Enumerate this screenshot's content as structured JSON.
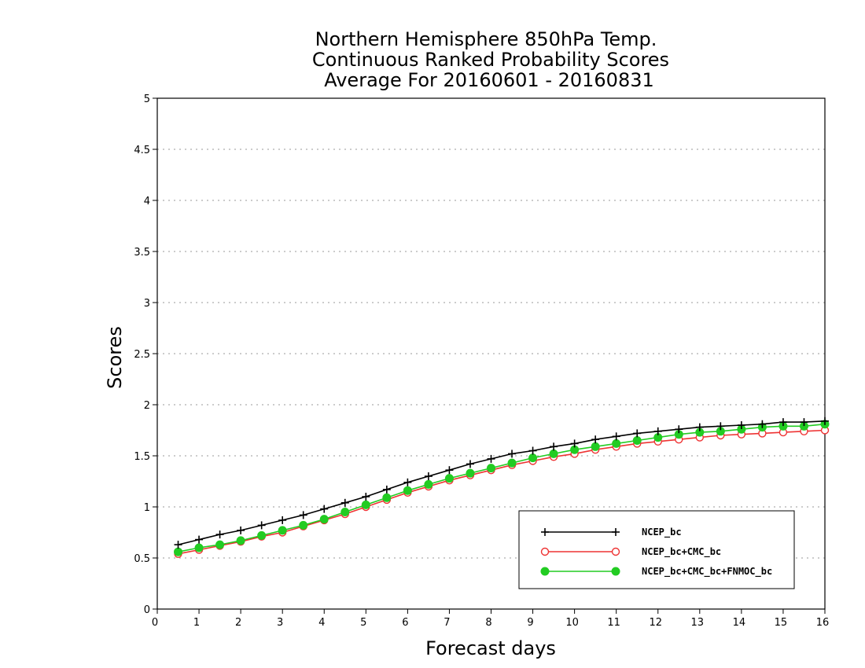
{
  "chart_data": {
    "type": "line",
    "title_lines": [
      "Northern Hemisphere 850hPa Temp.",
      "Continuous Ranked Probability Scores",
      "Average For 20160601 - 20160831"
    ],
    "xlabel": "Forecast days",
    "ylabel": "Scores",
    "xlim": [
      0,
      16
    ],
    "ylim": [
      0,
      5
    ],
    "x_ticks": [
      "0",
      "1",
      "2",
      "3",
      "4",
      "5",
      "6",
      "7",
      "8",
      "9",
      "10",
      "11",
      "12",
      "13",
      "14",
      "15",
      "16"
    ],
    "y_ticks": [
      "0",
      "0.5",
      "1",
      "1.5",
      "2",
      "2.5",
      "3",
      "3.5",
      "4",
      "4.5",
      "5"
    ],
    "grid": "horizontal dotted",
    "legend_placement": "bottom-right",
    "x": [
      0.5,
      1,
      1.5,
      2,
      2.5,
      3,
      3.5,
      4,
      4.5,
      5,
      5.5,
      6,
      6.5,
      7,
      7.5,
      8,
      8.5,
      9,
      9.5,
      10,
      10.5,
      11,
      11.5,
      12,
      12.5,
      13,
      13.5,
      14,
      14.5,
      15,
      15.5,
      16
    ],
    "series": [
      {
        "name": "NCEP_bc",
        "color": "#000000",
        "marker": "plus",
        "values": [
          0.63,
          0.68,
          0.73,
          0.77,
          0.82,
          0.87,
          0.92,
          0.98,
          1.04,
          1.1,
          1.17,
          1.24,
          1.3,
          1.36,
          1.42,
          1.47,
          1.52,
          1.55,
          1.59,
          1.62,
          1.66,
          1.69,
          1.72,
          1.74,
          1.76,
          1.78,
          1.79,
          1.8,
          1.81,
          1.83,
          1.83,
          1.84
        ]
      },
      {
        "name": "NCEP_bc+CMC_bc",
        "color": "#ee3333",
        "marker": "open-circle",
        "values": [
          0.54,
          0.58,
          0.62,
          0.66,
          0.71,
          0.75,
          0.81,
          0.87,
          0.93,
          1.0,
          1.07,
          1.14,
          1.2,
          1.26,
          1.31,
          1.36,
          1.41,
          1.45,
          1.49,
          1.52,
          1.56,
          1.59,
          1.62,
          1.64,
          1.66,
          1.68,
          1.7,
          1.71,
          1.72,
          1.73,
          1.74,
          1.75
        ]
      },
      {
        "name": "NCEP_bc+CMC_bc+FNMOC_bc",
        "color": "#22cc22",
        "marker": "filled-circle",
        "values": [
          0.56,
          0.6,
          0.63,
          0.67,
          0.72,
          0.77,
          0.82,
          0.88,
          0.95,
          1.02,
          1.09,
          1.16,
          1.22,
          1.28,
          1.33,
          1.38,
          1.43,
          1.48,
          1.52,
          1.56,
          1.59,
          1.62,
          1.65,
          1.68,
          1.71,
          1.73,
          1.74,
          1.76,
          1.78,
          1.79,
          1.79,
          1.81
        ]
      }
    ]
  }
}
